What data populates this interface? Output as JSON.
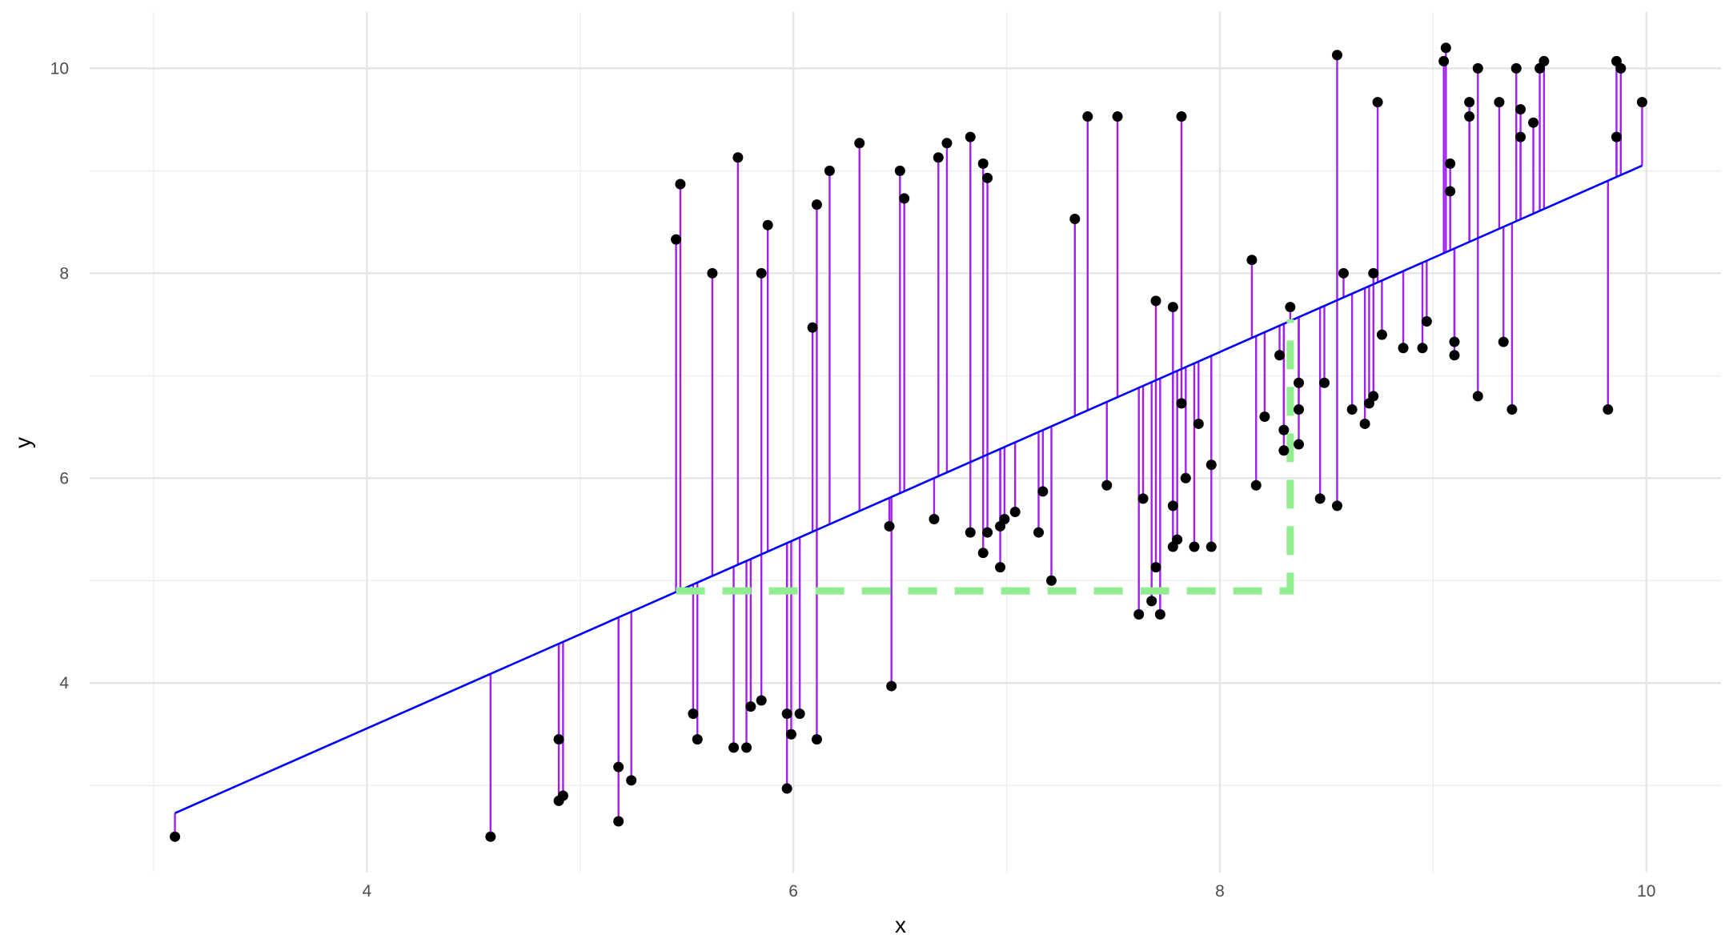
{
  "chart_data": {
    "type": "scatter",
    "title": "",
    "xlabel": "x",
    "ylabel": "y",
    "xlim": [
      2.7,
      10.35
    ],
    "ylim": [
      2.15,
      10.55
    ],
    "x_ticks": [
      4,
      6,
      8,
      10
    ],
    "x_tick_labels": [
      "4",
      "6",
      "8",
      "10"
    ],
    "y_ticks": [
      4,
      6,
      8,
      10
    ],
    "y_tick_labels": [
      "4",
      "6",
      "8",
      "10"
    ],
    "grid": true,
    "legend": "none",
    "regression_line": {
      "x_start": 3.1,
      "y_start": 2.73,
      "x_end": 9.98,
      "y_end": 9.05,
      "color": "#0000ff"
    },
    "residual_color": "#a020f0",
    "point_color": "#000000",
    "highlight_path": {
      "color": "#90ee90",
      "style": "dashed",
      "x": [
        5.45,
        8.33,
        8.33
      ],
      "y": [
        4.9,
        4.9,
        7.55
      ]
    },
    "points": [
      {
        "x": 3.1,
        "y": 2.5
      },
      {
        "x": 4.58,
        "y": 2.5
      },
      {
        "x": 4.9,
        "y": 2.85
      },
      {
        "x": 4.92,
        "y": 2.9
      },
      {
        "x": 4.9,
        "y": 3.45
      },
      {
        "x": 5.18,
        "y": 2.65
      },
      {
        "x": 5.18,
        "y": 3.18
      },
      {
        "x": 5.24,
        "y": 3.05
      },
      {
        "x": 5.45,
        "y": 8.33
      },
      {
        "x": 5.47,
        "y": 8.87
      },
      {
        "x": 5.53,
        "y": 3.7
      },
      {
        "x": 5.55,
        "y": 3.45
      },
      {
        "x": 5.62,
        "y": 8.0
      },
      {
        "x": 5.72,
        "y": 3.37
      },
      {
        "x": 5.74,
        "y": 9.13
      },
      {
        "x": 5.78,
        "y": 3.37
      },
      {
        "x": 5.8,
        "y": 3.77
      },
      {
        "x": 5.85,
        "y": 3.83
      },
      {
        "x": 5.85,
        "y": 8.0
      },
      {
        "x": 5.88,
        "y": 8.47
      },
      {
        "x": 5.97,
        "y": 2.97
      },
      {
        "x": 5.97,
        "y": 3.7
      },
      {
        "x": 5.99,
        "y": 3.5
      },
      {
        "x": 6.03,
        "y": 3.7
      },
      {
        "x": 6.09,
        "y": 7.47
      },
      {
        "x": 6.11,
        "y": 3.45
      },
      {
        "x": 6.11,
        "y": 8.67
      },
      {
        "x": 6.17,
        "y": 9.0
      },
      {
        "x": 6.31,
        "y": 9.27
      },
      {
        "x": 6.45,
        "y": 5.53
      },
      {
        "x": 6.46,
        "y": 3.97
      },
      {
        "x": 6.5,
        "y": 9.0
      },
      {
        "x": 6.52,
        "y": 8.73
      },
      {
        "x": 6.66,
        "y": 5.6
      },
      {
        "x": 6.68,
        "y": 9.13
      },
      {
        "x": 6.72,
        "y": 9.27
      },
      {
        "x": 6.83,
        "y": 5.47
      },
      {
        "x": 6.83,
        "y": 9.33
      },
      {
        "x": 6.89,
        "y": 5.27
      },
      {
        "x": 6.89,
        "y": 9.07
      },
      {
        "x": 6.91,
        "y": 5.47
      },
      {
        "x": 6.91,
        "y": 8.93
      },
      {
        "x": 6.97,
        "y": 5.13
      },
      {
        "x": 6.97,
        "y": 5.53
      },
      {
        "x": 6.99,
        "y": 5.6
      },
      {
        "x": 7.04,
        "y": 5.67
      },
      {
        "x": 7.15,
        "y": 5.47
      },
      {
        "x": 7.17,
        "y": 5.87
      },
      {
        "x": 7.21,
        "y": 5.0
      },
      {
        "x": 7.32,
        "y": 8.53
      },
      {
        "x": 7.38,
        "y": 9.53
      },
      {
        "x": 7.47,
        "y": 5.93
      },
      {
        "x": 7.52,
        "y": 9.53
      },
      {
        "x": 7.62,
        "y": 4.67
      },
      {
        "x": 7.64,
        "y": 5.8
      },
      {
        "x": 7.68,
        "y": 4.8
      },
      {
        "x": 7.7,
        "y": 5.13
      },
      {
        "x": 7.7,
        "y": 7.73
      },
      {
        "x": 7.72,
        "y": 4.67
      },
      {
        "x": 7.78,
        "y": 5.33
      },
      {
        "x": 7.78,
        "y": 5.73
      },
      {
        "x": 7.78,
        "y": 7.67
      },
      {
        "x": 7.8,
        "y": 5.4
      },
      {
        "x": 7.82,
        "y": 6.73
      },
      {
        "x": 7.82,
        "y": 9.53
      },
      {
        "x": 7.84,
        "y": 6.0
      },
      {
        "x": 7.88,
        "y": 5.33
      },
      {
        "x": 7.9,
        "y": 6.53
      },
      {
        "x": 7.96,
        "y": 5.33
      },
      {
        "x": 7.96,
        "y": 6.13
      },
      {
        "x": 8.15,
        "y": 8.13
      },
      {
        "x": 8.17,
        "y": 5.93
      },
      {
        "x": 8.21,
        "y": 6.6
      },
      {
        "x": 8.28,
        "y": 7.2
      },
      {
        "x": 8.3,
        "y": 6.27
      },
      {
        "x": 8.3,
        "y": 6.47
      },
      {
        "x": 8.33,
        "y": 7.67
      },
      {
        "x": 8.37,
        "y": 6.33
      },
      {
        "x": 8.37,
        "y": 6.67
      },
      {
        "x": 8.37,
        "y": 6.93
      },
      {
        "x": 8.47,
        "y": 5.8
      },
      {
        "x": 8.49,
        "y": 6.93
      },
      {
        "x": 8.55,
        "y": 5.73
      },
      {
        "x": 8.55,
        "y": 10.13
      },
      {
        "x": 8.58,
        "y": 8.0
      },
      {
        "x": 8.62,
        "y": 6.67
      },
      {
        "x": 8.68,
        "y": 6.53
      },
      {
        "x": 8.7,
        "y": 6.73
      },
      {
        "x": 8.72,
        "y": 6.8
      },
      {
        "x": 8.72,
        "y": 8.0
      },
      {
        "x": 8.74,
        "y": 9.67
      },
      {
        "x": 8.76,
        "y": 7.4
      },
      {
        "x": 8.86,
        "y": 7.27
      },
      {
        "x": 8.95,
        "y": 7.27
      },
      {
        "x": 8.97,
        "y": 7.53
      },
      {
        "x": 9.05,
        "y": 10.07
      },
      {
        "x": 9.06,
        "y": 10.2
      },
      {
        "x": 9.08,
        "y": 8.8
      },
      {
        "x": 9.08,
        "y": 9.07
      },
      {
        "x": 9.1,
        "y": 7.2
      },
      {
        "x": 9.1,
        "y": 7.33
      },
      {
        "x": 9.17,
        "y": 9.53
      },
      {
        "x": 9.17,
        "y": 9.67
      },
      {
        "x": 9.21,
        "y": 6.8
      },
      {
        "x": 9.21,
        "y": 10.0
      },
      {
        "x": 9.31,
        "y": 9.67
      },
      {
        "x": 9.33,
        "y": 7.33
      },
      {
        "x": 9.37,
        "y": 6.67
      },
      {
        "x": 9.39,
        "y": 10.0
      },
      {
        "x": 9.41,
        "y": 9.33
      },
      {
        "x": 9.41,
        "y": 9.6
      },
      {
        "x": 9.47,
        "y": 9.47
      },
      {
        "x": 9.5,
        "y": 10.0
      },
      {
        "x": 9.52,
        "y": 10.07
      },
      {
        "x": 9.82,
        "y": 6.67
      },
      {
        "x": 9.86,
        "y": 9.33
      },
      {
        "x": 9.86,
        "y": 10.07
      },
      {
        "x": 9.88,
        "y": 10.0
      },
      {
        "x": 9.98,
        "y": 9.67
      }
    ]
  }
}
